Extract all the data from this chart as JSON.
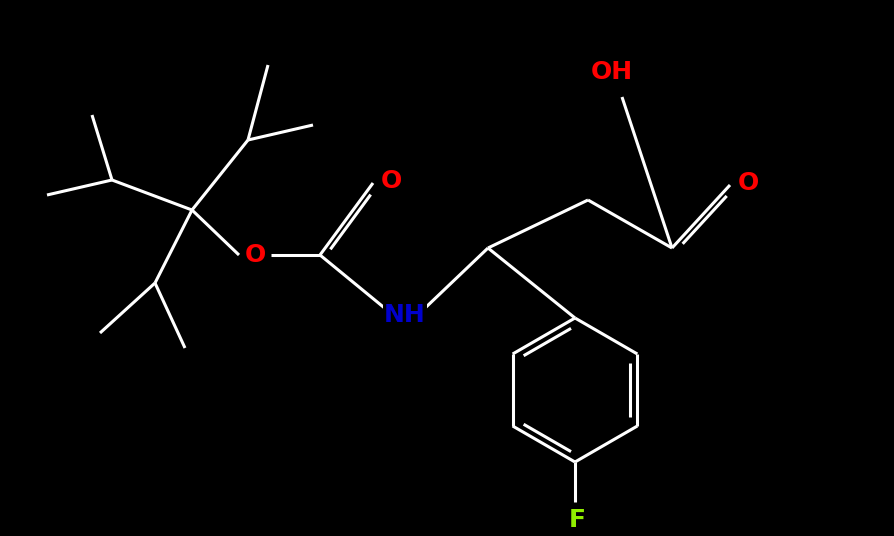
{
  "background_color": "#000000",
  "bond_color": "#ffffff",
  "atom_colors": {
    "O": "#ff0000",
    "N": "#0000cd",
    "F": "#90ee00",
    "C": "#ffffff"
  },
  "figsize": [
    8.95,
    5.36
  ],
  "dpi": 100,
  "lw": 2.2,
  "fontsize": 18
}
